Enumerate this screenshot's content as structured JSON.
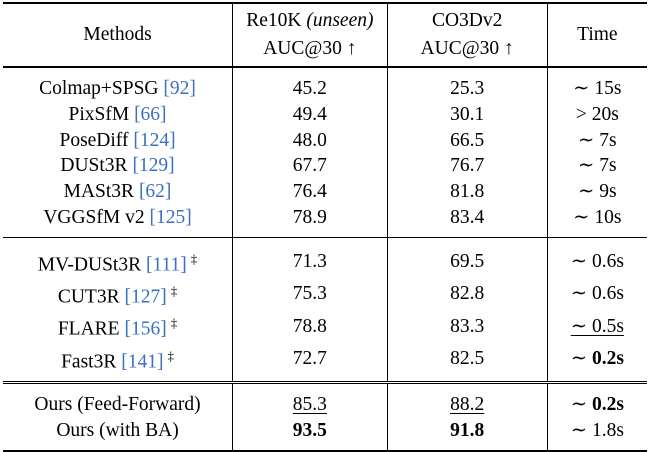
{
  "header": {
    "col1": "Methods",
    "col2_line1": "Re10K",
    "col2_line1_it": "(unseen)",
    "col2_line2": "AUC@30 ↑",
    "col3_line1": "CO3Dv2",
    "col3_line2": "AUC@30 ↑",
    "col4": "Time"
  },
  "group1": [
    {
      "name": "Colmap+SPSG",
      "cite": "[92]",
      "re10k": "45.2",
      "co3d": "25.3",
      "time": "∼ 15s"
    },
    {
      "name": "PixSfM",
      "cite": "[66]",
      "re10k": "49.4",
      "co3d": "30.1",
      "time": "> 20s"
    },
    {
      "name": "PoseDiff",
      "cite": "[124]",
      "re10k": "48.0",
      "co3d": "66.5",
      "time": "∼ 7s"
    },
    {
      "name": "DUSt3R",
      "cite": "[129]",
      "re10k": "67.7",
      "co3d": "76.7",
      "time": "∼ 7s"
    },
    {
      "name": "MASt3R",
      "cite": "[62]",
      "re10k": "76.4",
      "co3d": "81.8",
      "time": "∼ 9s"
    },
    {
      "name": "VGGSfM v2",
      "cite": "[125]",
      "re10k": "78.9",
      "co3d": "83.4",
      "time": "∼ 10s"
    }
  ],
  "group2": [
    {
      "name": "MV-DUSt3R",
      "cite": "[111]",
      "dag": "‡",
      "re10k": "71.3",
      "co3d": "69.5",
      "time": "∼ 0.6s"
    },
    {
      "name": "CUT3R",
      "cite": "[127]",
      "dag": "‡",
      "re10k": "75.3",
      "co3d": "82.8",
      "time": "∼ 0.6s"
    },
    {
      "name": "FLARE",
      "cite": "[156]",
      "dag": "‡",
      "re10k": "78.8",
      "co3d": "83.3",
      "time": "∼ 0.5s"
    },
    {
      "name": "Fast3R",
      "cite": "[141]",
      "dag": "‡",
      "re10k": "72.7",
      "co3d": "82.5",
      "time_prefix": "∼ ",
      "time_bold": "0.2s"
    }
  ],
  "group3": [
    {
      "name": "Ours (Feed-Forward)",
      "re10k": "85.3",
      "co3d": "88.2",
      "time_prefix": "∼ ",
      "time_bold": "0.2s"
    },
    {
      "name": "Ours (with BA)",
      "re10k": "93.5",
      "co3d": "91.8",
      "time": "∼ 1.8s"
    }
  ]
}
